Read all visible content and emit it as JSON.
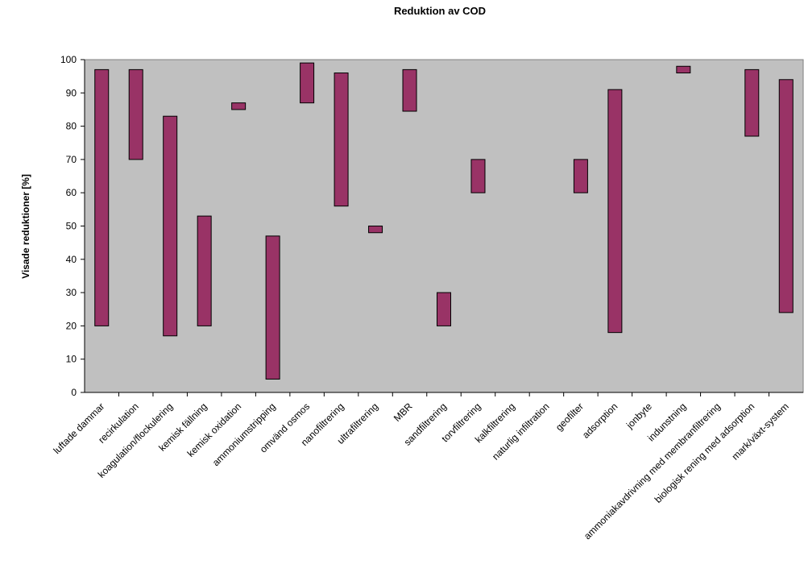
{
  "chart_data": {
    "type": "bar",
    "subtype": "floating-range",
    "title": "Reduktion av COD",
    "xlabel": "",
    "ylabel": "Visade reduktioner [%]",
    "ylim": [
      0,
      100
    ],
    "yticks": [
      0,
      10,
      20,
      30,
      40,
      50,
      60,
      70,
      80,
      90,
      100
    ],
    "grid": false,
    "plot_background": "#c0c0c0",
    "bar_color": "#993366",
    "categories": [
      "luftade dammar",
      "recirkulation",
      "koagulation/flockulering",
      "kemisk fällning",
      "kemisk oxidation",
      "ammoniumstripping",
      "omvänd osmos",
      "nanofiltrering",
      "ultrafiltrering",
      "MBR",
      "sandfiltrering",
      "torvfiltrering",
      "kalkfiltrering",
      "naturlig infiltration",
      "geofilter",
      "adsorption",
      "jonbyte",
      "indunstning",
      "ammoniakavdrivning med membranfiltrering",
      "biologisk rening med adsorption",
      "mark/växt-system"
    ],
    "ranges": [
      [
        20,
        97
      ],
      [
        70,
        97
      ],
      [
        17,
        83
      ],
      [
        20,
        53
      ],
      [
        85,
        87
      ],
      [
        4,
        47
      ],
      [
        87,
        99
      ],
      [
        56,
        96
      ],
      [
        48,
        50
      ],
      [
        84.5,
        97
      ],
      [
        20,
        30
      ],
      [
        60,
        70
      ],
      null,
      null,
      [
        60,
        70
      ],
      [
        18,
        91
      ],
      null,
      [
        96,
        98
      ],
      null,
      [
        77,
        97
      ],
      [
        24,
        94
      ]
    ]
  }
}
